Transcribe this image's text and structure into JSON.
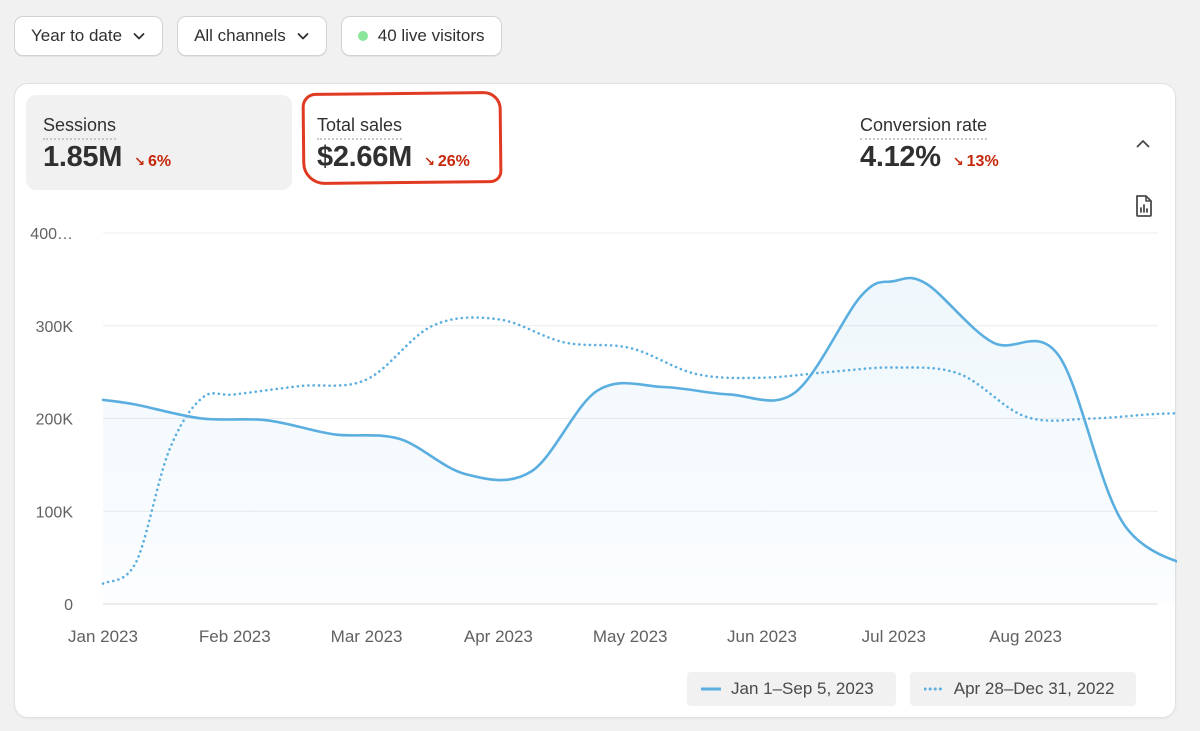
{
  "filters": {
    "date_range": "Year to date",
    "channels": "All channels",
    "live_visitors": "40 live visitors"
  },
  "metrics": [
    {
      "label": "Sessions",
      "value": "1.85M",
      "delta": "6%"
    },
    {
      "label": "Total sales",
      "value": "$2.66M",
      "delta": "26%"
    },
    {
      "label": "Conversion rate",
      "value": "4.12%",
      "delta": "13%"
    }
  ],
  "icons": {
    "chevron": "chevron-down-icon",
    "live": "live-dot-icon",
    "collapse": "chevron-up-icon",
    "report": "report-icon",
    "delta": "arrow-down-right-icon"
  },
  "colors": {
    "series": "#5aaee0",
    "negative": "#c5280c",
    "live_dot": "#8be59a",
    "annotation": "#e03a22"
  },
  "chart_data": {
    "type": "line",
    "x_labels": [
      "Jan 2023",
      "Feb 2023",
      "Mar 2023",
      "Apr 2023",
      "May 2023",
      "Jun 2023",
      "Jul 2023",
      "Aug 2023"
    ],
    "y_tick_labels": [
      "400…",
      "300K",
      "200K",
      "100K",
      "0"
    ],
    "ylim": [
      0,
      400000
    ],
    "grid": true,
    "legend_position": "bottom-right",
    "series": [
      {
        "name": "Jan 1–Sep 5, 2023",
        "style": "solid",
        "x": [
          0,
          0.25,
          0.75,
          1.25,
          1.75,
          2.25,
          2.75,
          3.25,
          3.75,
          4.25,
          4.75,
          5.25,
          5.75,
          6.0,
          6.25,
          6.75,
          7.25,
          7.75,
          8.4
        ],
        "values": [
          220000,
          215000,
          200000,
          198000,
          183000,
          178000,
          140000,
          143000,
          230000,
          234000,
          226000,
          228000,
          332000,
          348000,
          345000,
          282000,
          268000,
          85000,
          34000
        ]
      },
      {
        "name": "Apr 28–Dec 31, 2022",
        "style": "dotted",
        "x": [
          0,
          0.25,
          0.5,
          0.75,
          1.0,
          1.5,
          2.0,
          2.5,
          3.0,
          3.5,
          4.0,
          4.5,
          5.0,
          5.5,
          6.0,
          6.5,
          7.0,
          7.5,
          8.0,
          8.4
        ],
        "values": [
          22000,
          45000,
          165000,
          222000,
          226000,
          235000,
          242000,
          300000,
          307000,
          282000,
          276000,
          248000,
          244000,
          250000,
          255000,
          248000,
          202000,
          200000,
          205000,
          206000
        ]
      }
    ]
  }
}
